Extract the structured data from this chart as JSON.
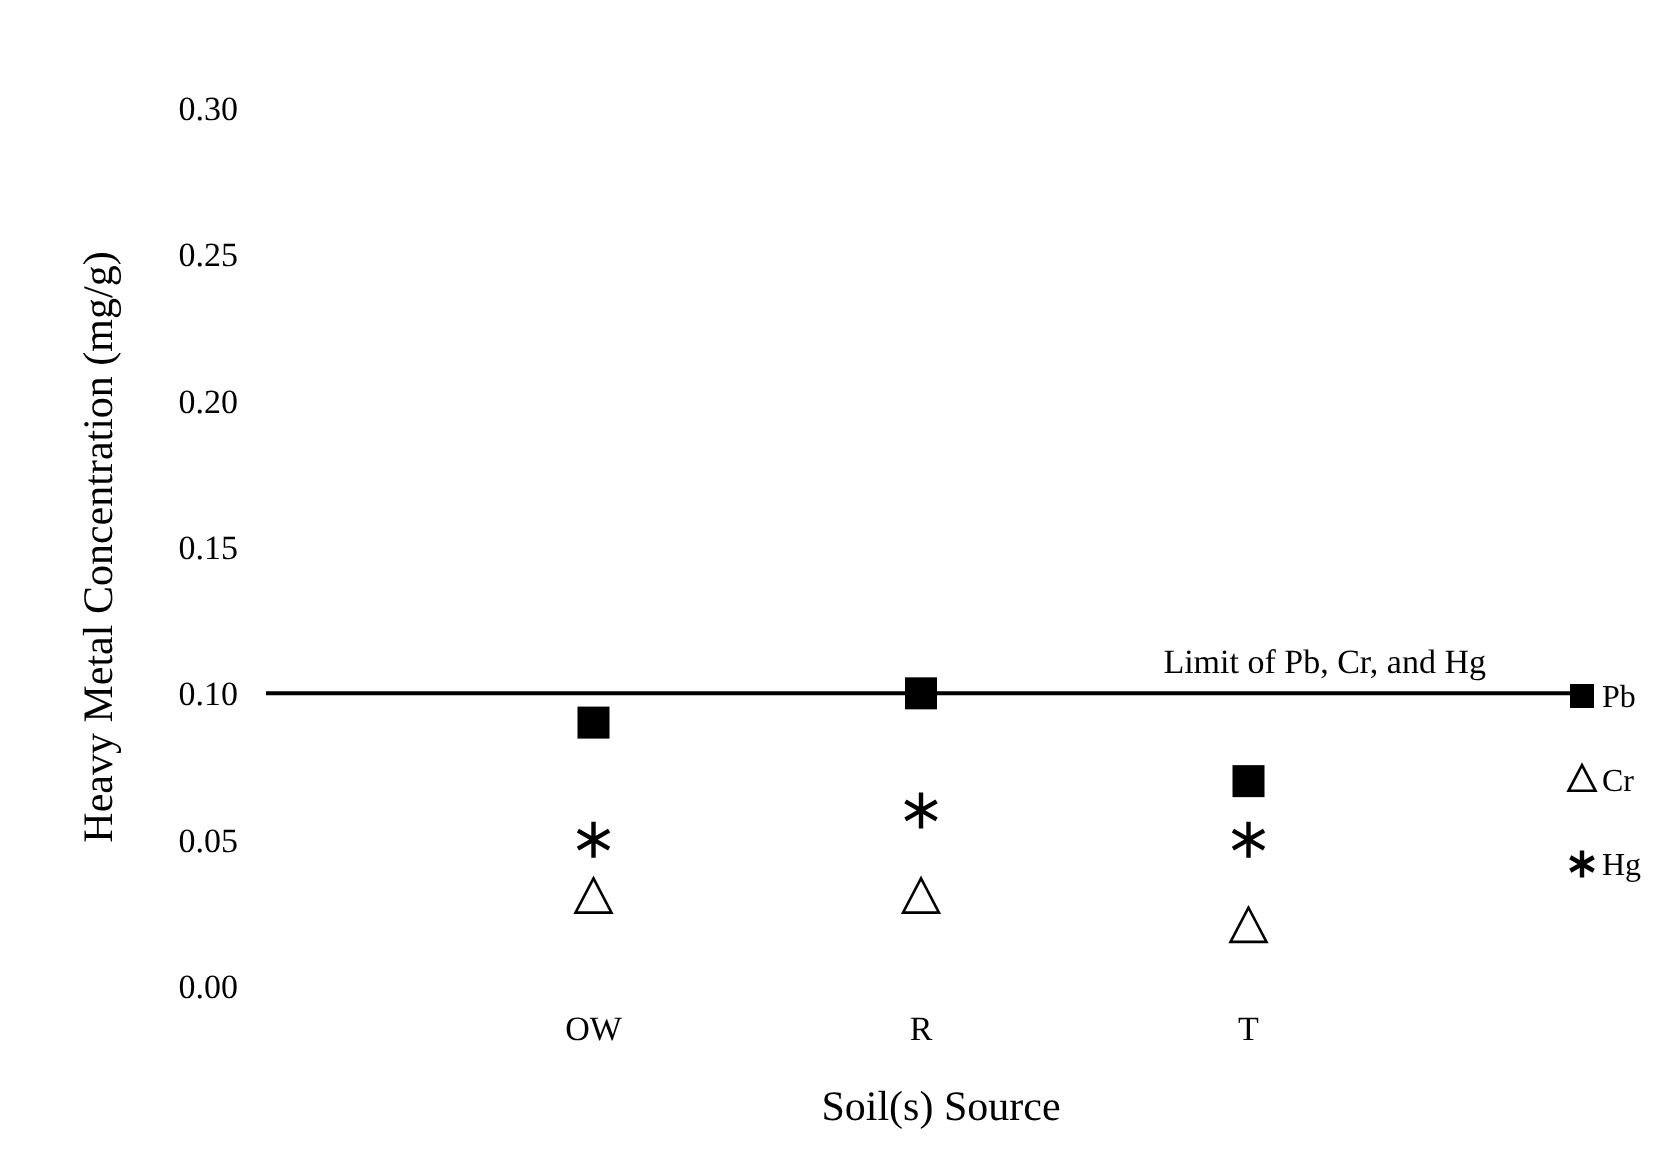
{
  "chart_data": {
    "type": "scatter",
    "xlabel": "Soil(s) Source",
    "ylabel": "Heavy Metal Concentration (mg/g)",
    "categories": [
      "OW",
      "R",
      "T"
    ],
    "series": [
      {
        "name": "Pb",
        "color": "#000000",
        "marker": "square",
        "values": [
          0.09,
          0.1,
          0.07
        ]
      },
      {
        "name": "Cr",
        "color": "#000000",
        "marker": "triangle",
        "values": [
          0.03,
          0.03,
          0.02
        ]
      },
      {
        "name": "Hg",
        "color": "#000000",
        "marker": "cross",
        "values": [
          0.05,
          0.06,
          0.05
        ]
      }
    ],
    "ylim": [
      0,
      0.3
    ],
    "yticks": [
      {
        "value": 0,
        "label": "0.00"
      },
      {
        "value": 0.05,
        "label": "0.05"
      },
      {
        "value": 0.1,
        "label": "0.10"
      },
      {
        "value": 0.15,
        "label": "0.15"
      },
      {
        "value": 0.2,
        "label": "0.20"
      },
      {
        "value": 0.25,
        "label": "0.25"
      },
      {
        "value": 0.3,
        "label": "0.30"
      }
    ],
    "ref_lines": [
      {
        "axis": "y",
        "value": 0.1,
        "label": "Limit of Pb, Cr, and Hg",
        "color": "#000000"
      }
    ],
    "grid": false,
    "legend": "right"
  }
}
